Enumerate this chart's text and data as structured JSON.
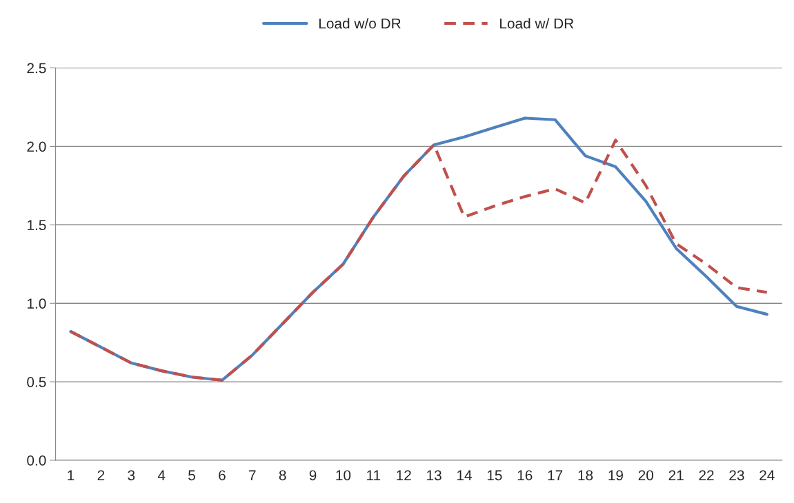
{
  "chart_data": {
    "type": "line",
    "categories": [
      "1",
      "2",
      "3",
      "4",
      "5",
      "6",
      "7",
      "8",
      "9",
      "10",
      "11",
      "12",
      "13",
      "14",
      "15",
      "16",
      "17",
      "18",
      "19",
      "20",
      "21",
      "22",
      "23",
      "24"
    ],
    "series": [
      {
        "name": "Load w/o DR",
        "color": "#4f81bd",
        "line_style": "solid",
        "values": [
          0.82,
          0.72,
          0.62,
          0.57,
          0.53,
          0.51,
          0.67,
          0.87,
          1.07,
          1.25,
          1.55,
          1.81,
          2.01,
          2.06,
          2.12,
          2.18,
          2.17,
          1.94,
          1.87,
          1.65,
          1.35,
          1.17,
          0.98,
          0.93
        ]
      },
      {
        "name": "Load w/ DR",
        "color": "#c0504d",
        "line_style": "dashed",
        "values": [
          0.82,
          0.72,
          0.62,
          0.57,
          0.53,
          0.51,
          0.67,
          0.87,
          1.07,
          1.25,
          1.55,
          1.81,
          2.01,
          1.55,
          1.62,
          1.68,
          1.73,
          1.64,
          2.04,
          1.75,
          1.38,
          1.25,
          1.1,
          1.07
        ]
      }
    ],
    "ylim": [
      0,
      2.5
    ],
    "yticks": [
      {
        "value": 0,
        "label": "0.0"
      },
      {
        "value": 0.5,
        "label": "0.5"
      },
      {
        "value": 1,
        "label": "1.0"
      },
      {
        "value": 1.5,
        "label": "1.5"
      },
      {
        "value": 2,
        "label": "2.0"
      },
      {
        "value": 2.5,
        "label": "2.5"
      }
    ],
    "grid": "y",
    "legend": "top",
    "marker": "none"
  }
}
